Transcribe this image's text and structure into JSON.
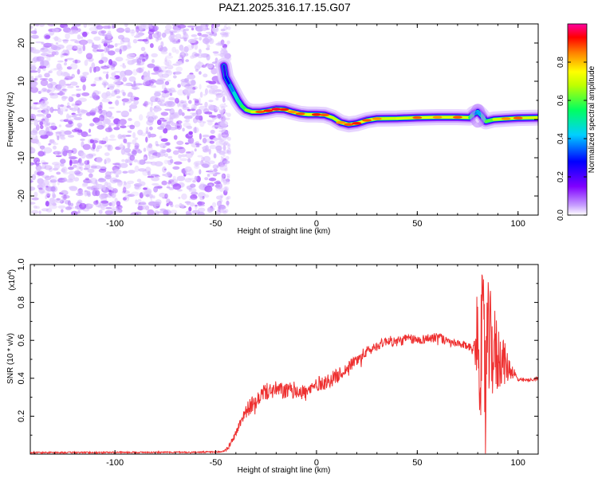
{
  "figure": {
    "title": "PAZ1.2025.316.17.15.G07"
  },
  "chart_data": [
    {
      "type": "heatmap",
      "title": "PAZ1.2025.316.17.15.G07",
      "xlabel": "Height of straight line (km)",
      "ylabel": "Frequency (Hz)",
      "xlim": [
        -142,
        110
      ],
      "ylim": [
        -25,
        25
      ],
      "xticks": [
        -100,
        -50,
        0,
        50,
        100
      ],
      "yticks": [
        -20,
        -10,
        0,
        10,
        20
      ],
      "noise_region_x": [
        -142,
        -44
      ],
      "ridge": {
        "x": [
          -46,
          -45,
          -43,
          -41,
          -39,
          -37,
          -35,
          -32,
          -28,
          -24,
          -20,
          -16,
          -12,
          -8,
          -4,
          0,
          4,
          8,
          12,
          16,
          20,
          25,
          30,
          40,
          50,
          60,
          70,
          76,
          78,
          80,
          82,
          84,
          88,
          94,
          100,
          110
        ],
        "freq": [
          14,
          11,
          9,
          7,
          5,
          3.5,
          2.5,
          2,
          2,
          2.3,
          2.7,
          2.6,
          2,
          1.5,
          1.3,
          1.3,
          1.2,
          0.5,
          -0.8,
          -1.3,
          -1,
          -0.2,
          0.2,
          0.3,
          0.5,
          0.6,
          0.6,
          0.5,
          1.5,
          2,
          1,
          -0.5,
          0,
          0.2,
          0.4,
          0.5
        ],
        "amplitude": [
          0.3,
          0.35,
          0.4,
          0.5,
          0.55,
          0.6,
          0.7,
          0.75,
          0.85,
          0.9,
          0.95,
          0.9,
          0.8,
          0.85,
          0.75,
          0.9,
          0.85,
          0.75,
          0.8,
          0.85,
          0.9,
          0.85,
          0.8,
          0.75,
          0.85,
          0.8,
          0.85,
          0.75,
          0.5,
          0.4,
          0.55,
          0.6,
          0.75,
          0.8,
          0.85,
          0.75
        ]
      },
      "colorbar": {
        "label": "Normalized spectral amplitude",
        "range": [
          0,
          1
        ],
        "ticks": [
          0.0,
          0.2,
          0.4,
          0.6,
          0.8
        ],
        "tick_labels": [
          "0.0",
          "0.2",
          "0.4",
          "0.6",
          "0.8"
        ],
        "colormap": [
          "#ffffff",
          "#c8a0ff",
          "#8000ff",
          "#0000ff",
          "#00d0ff",
          "#00ff60",
          "#c0ff00",
          "#ffff00",
          "#ff8000",
          "#ff0000",
          "#ff00a0"
        ]
      }
    },
    {
      "type": "line",
      "xlabel": "Height of straight line (km)",
      "ylabel": "SNR (10 * v/v)",
      "scale_label": "(x10",
      "scale_exponent": "4",
      "scale_close": ")",
      "xlim": [
        -142,
        110
      ],
      "ylim": [
        0,
        1.0
      ],
      "xticks": [
        -100,
        -50,
        0,
        50,
        100
      ],
      "yticks": [
        0.2,
        0.4,
        0.6,
        0.8,
        1.0
      ],
      "ytick_labels": [
        "0.2",
        "0.4",
        "0.6",
        "0.8",
        "1.0"
      ],
      "series": [
        {
          "name": "SNR",
          "color": "#ee3030",
          "x": [
            -142,
            -60,
            -47,
            -44,
            -42,
            -40,
            -38,
            -36,
            -34,
            -32,
            -30,
            -28,
            -26,
            -24,
            -20,
            -15,
            -10,
            -5,
            0,
            5,
            10,
            15,
            20,
            25,
            30,
            35,
            40,
            45,
            50,
            55,
            60,
            65,
            70,
            75,
            78,
            80,
            82,
            84,
            86,
            88,
            90,
            92,
            94,
            96,
            98,
            100,
            105,
            110
          ],
          "y": [
            0.008,
            0.01,
            0.012,
            0.03,
            0.07,
            0.11,
            0.16,
            0.21,
            0.24,
            0.26,
            0.25,
            0.31,
            0.33,
            0.33,
            0.34,
            0.33,
            0.34,
            0.32,
            0.37,
            0.38,
            0.41,
            0.45,
            0.5,
            0.54,
            0.57,
            0.6,
            0.59,
            0.61,
            0.6,
            0.61,
            0.62,
            0.59,
            0.58,
            0.57,
            0.56,
            0.6,
            0.55,
            0.5,
            0.58,
            0.55,
            0.5,
            0.52,
            0.46,
            0.45,
            0.43,
            0.39,
            0.39,
            0.4
          ],
          "noise": [
            0.004,
            0.004,
            0.005,
            0.01,
            0.015,
            0.02,
            0.025,
            0.03,
            0.04,
            0.045,
            0.05,
            0.04,
            0.045,
            0.045,
            0.045,
            0.045,
            0.045,
            0.045,
            0.04,
            0.04,
            0.04,
            0.03,
            0.035,
            0.03,
            0.025,
            0.025,
            0.03,
            0.025,
            0.025,
            0.025,
            0.03,
            0.025,
            0.02,
            0.02,
            0.02,
            0.3,
            0.4,
            0.45,
            0.3,
            0.25,
            0.2,
            0.15,
            0.1,
            0.06,
            0.03,
            0.01,
            0.01,
            0.01
          ]
        }
      ]
    }
  ]
}
